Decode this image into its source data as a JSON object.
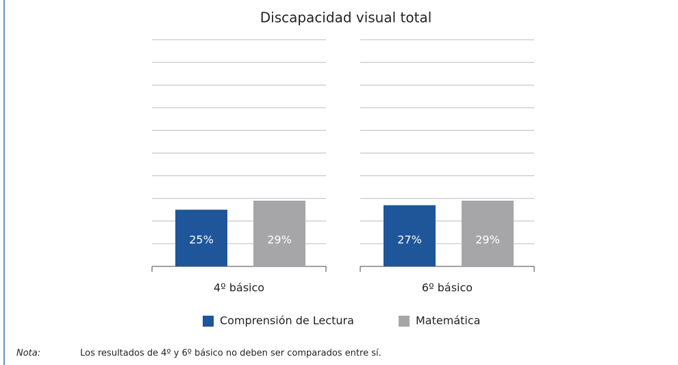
{
  "chart_data": {
    "type": "bar",
    "title": "Discapacidad visual total",
    "categories": [
      "4º básico",
      "6º básico"
    ],
    "series": [
      {
        "name": "Comprensión de Lectura",
        "color": "#1f5599",
        "values": [
          25,
          27
        ],
        "value_labels": [
          "25%",
          "27%"
        ]
      },
      {
        "name": "Matemática",
        "color": "#a6a6a8",
        "values": [
          29,
          29
        ],
        "value_labels": [
          "29%",
          "29%"
        ]
      }
    ],
    "ylim": [
      0,
      100
    ],
    "yticks": [
      0,
      10,
      20,
      30,
      40,
      50,
      60,
      70,
      80,
      90,
      100
    ],
    "grid": true,
    "note_label": "Nota:",
    "note": "Los resultados de 4º y 6º básico no deben ser comparados entre sí."
  }
}
